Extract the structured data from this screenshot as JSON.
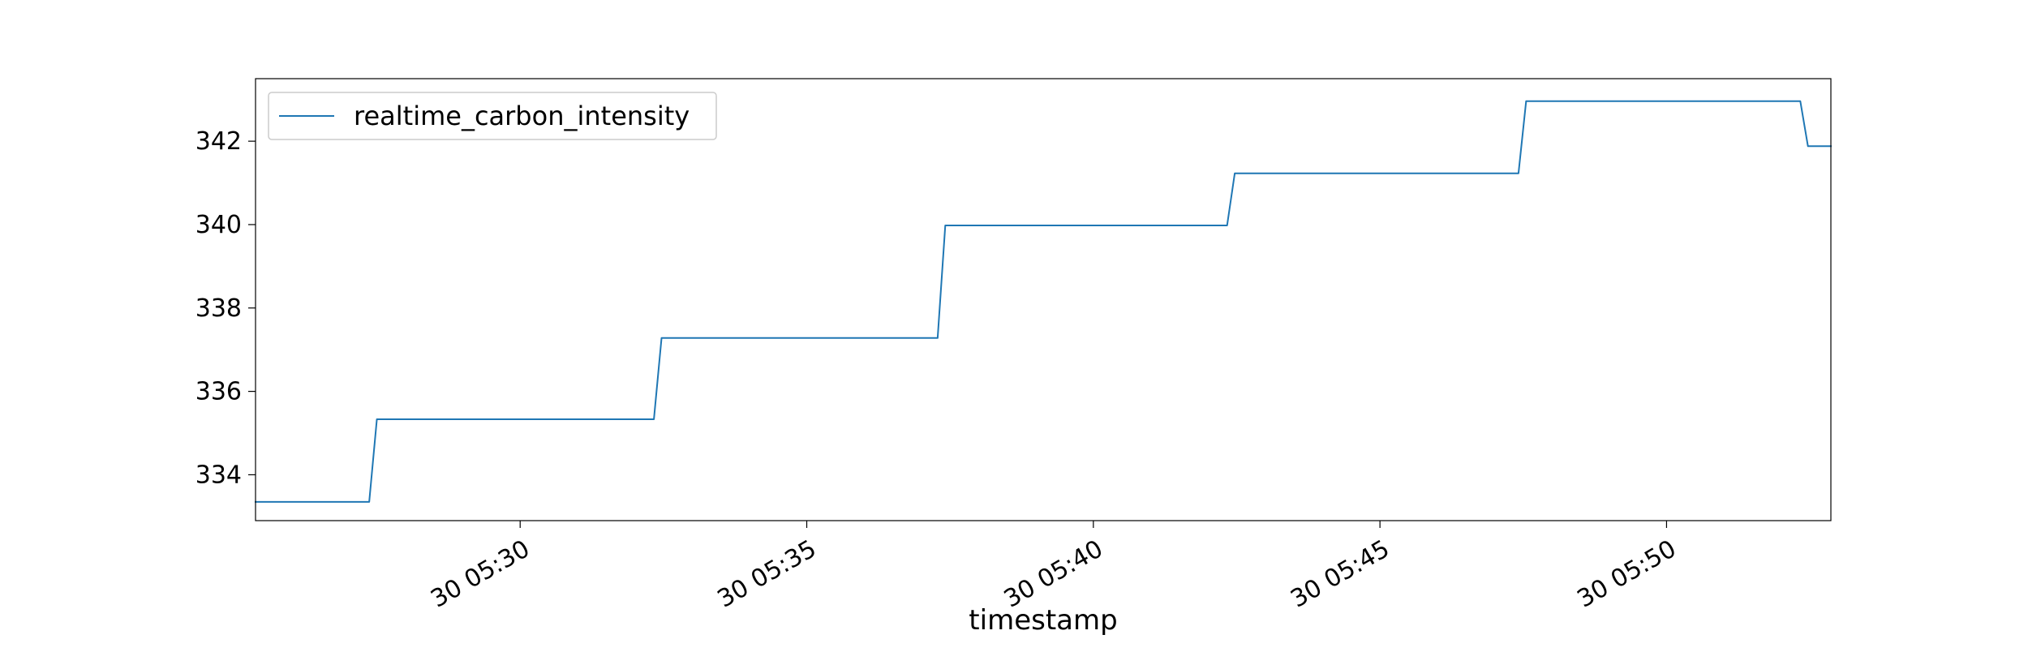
{
  "chart_data": {
    "type": "line",
    "title": "",
    "xlabel": "timestamp",
    "ylabel": "",
    "x_unit": "minutes after 05:00 on day 30",
    "xlim": [
      "30 05:25:23",
      "30 05:52:52"
    ],
    "ylim": [
      332.9,
      343.5
    ],
    "x_ticks": [
      "30 05:30",
      "30 05:35",
      "30 05:40",
      "30 05:45",
      "30 05:50"
    ],
    "y_ticks": [
      "334",
      "336",
      "338",
      "340",
      "342"
    ],
    "grid": false,
    "legend": {
      "position": "top-left",
      "entries": [
        "realtime_carbon_intensity"
      ]
    },
    "series": [
      {
        "name": "realtime_carbon_intensity",
        "color": "#1f77b4",
        "x": [
          "30 05:25:23",
          "30 05:27:22",
          "30 05:27:30",
          "30 05:32:20",
          "30 05:32:28",
          "30 05:37:17",
          "30 05:37:25",
          "30 05:42:20",
          "30 05:42:28",
          "30 05:47:25",
          "30 05:47:33",
          "30 05:52:20",
          "30 05:52:28",
          "30 05:52:52"
        ],
        "values": [
          333.35,
          333.35,
          335.33,
          335.33,
          337.28,
          337.28,
          339.98,
          339.98,
          341.23,
          341.23,
          342.96,
          342.96,
          341.88,
          341.88
        ]
      }
    ]
  }
}
